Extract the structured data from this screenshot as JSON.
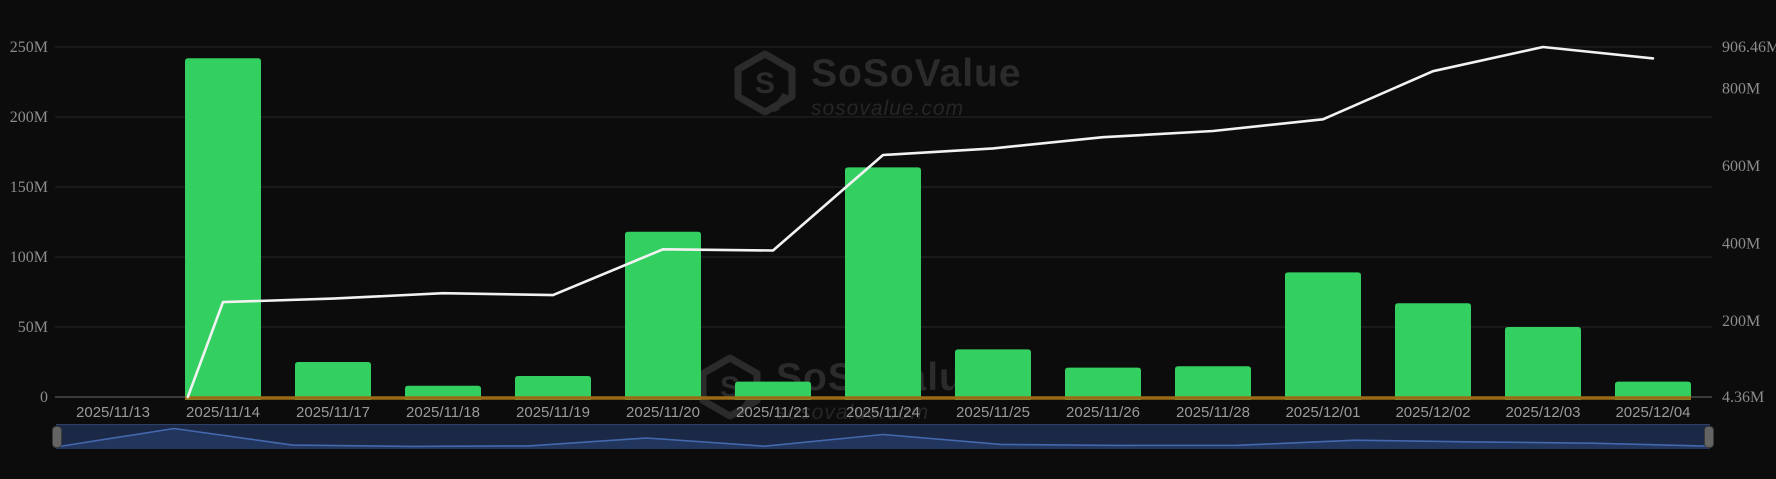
{
  "watermark": {
    "title": "SoSoValue",
    "domain": "sosovalue.com"
  },
  "chart_data": {
    "type": "bar+line",
    "categories": [
      "2025/11/13",
      "2025/11/14",
      "2025/11/17",
      "2025/11/18",
      "2025/11/19",
      "2025/11/20",
      "2025/11/21",
      "2025/11/24",
      "2025/11/25",
      "2025/11/26",
      "2025/11/28",
      "2025/12/01",
      "2025/12/02",
      "2025/12/03",
      "2025/12/04"
    ],
    "series": [
      {
        "name": "daily-net-flow-bars",
        "type": "bar",
        "axis": "left",
        "unit": "M",
        "color": "#33cf60",
        "values": [
          null,
          242,
          25,
          8,
          15,
          118,
          11,
          164,
          34,
          21,
          22,
          89,
          67,
          50,
          11
        ]
      },
      {
        "name": "cumulative-total-line",
        "type": "line",
        "axis": "right",
        "unit": "M",
        "color": "#f2f2f2",
        "values": [
          4.36,
          249,
          258,
          272,
          267,
          385,
          382,
          628,
          645,
          674,
          690,
          720,
          844,
          906.46,
          877
        ]
      }
    ],
    "left_axis": {
      "min": 0,
      "max": 250,
      "ticks": [
        {
          "label": "0",
          "value": 0
        },
        {
          "label": "50M",
          "value": 50
        },
        {
          "label": "100M",
          "value": 100
        },
        {
          "label": "150M",
          "value": 150
        },
        {
          "label": "200M",
          "value": 200
        },
        {
          "label": "250M",
          "value": 250
        }
      ]
    },
    "right_axis": {
      "min": 4.36,
      "max": 906.46,
      "ticks": [
        {
          "label": "4.36M",
          "value": 4.36
        },
        {
          "label": "200M",
          "value": 200
        },
        {
          "label": "400M",
          "value": 400
        },
        {
          "label": "600M",
          "value": 600
        },
        {
          "label": "800M",
          "value": 800
        },
        {
          "label": "906.46M",
          "value": 906.46
        }
      ]
    },
    "grid": true,
    "legend": null,
    "title": ""
  },
  "colors": {
    "background": "#0c0c0c",
    "bar_green": "#33cf60",
    "line_white": "#f2f2f2",
    "zero_line_orange": "#9a6a15",
    "grid": "#262626",
    "axis_label": "#8d8d8d",
    "date_label": "#9a9a9a",
    "navigator_bg": "#1b2946",
    "navigator_stroke": "#4468ae",
    "navigator_fill": "#22365f",
    "handle": "#646464",
    "watermark": "#2b2b2b"
  }
}
